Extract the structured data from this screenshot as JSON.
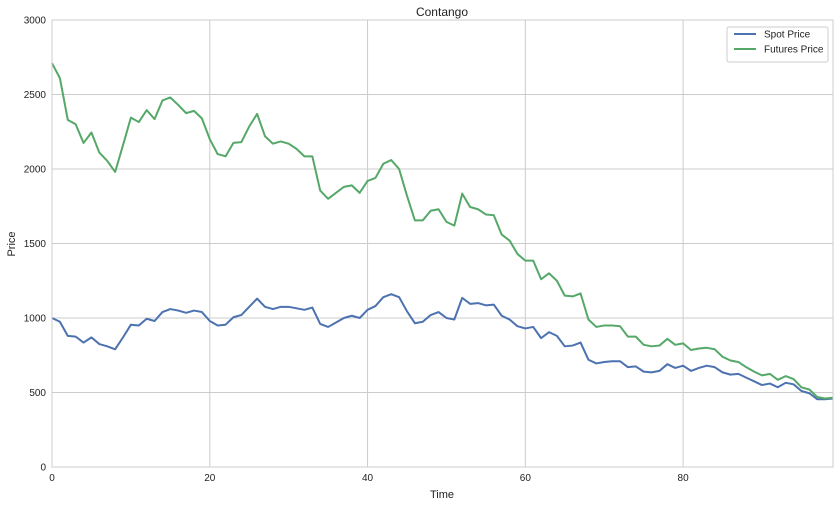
{
  "chart_data": {
    "type": "line",
    "title": "Contango",
    "xlabel": "Time",
    "ylabel": "Price",
    "xlim": [
      0,
      99
    ],
    "ylim": [
      0,
      3000
    ],
    "xticks": [
      0,
      20,
      40,
      60,
      80
    ],
    "yticks": [
      0,
      500,
      1000,
      1500,
      2000,
      2500,
      3000
    ],
    "grid": true,
    "legend_position": "top-right",
    "x": [
      0,
      1,
      2,
      3,
      4,
      5,
      6,
      7,
      8,
      9,
      10,
      11,
      12,
      13,
      14,
      15,
      16,
      17,
      18,
      19,
      20,
      21,
      22,
      23,
      24,
      25,
      26,
      27,
      28,
      29,
      30,
      31,
      32,
      33,
      34,
      35,
      36,
      37,
      38,
      39,
      40,
      41,
      42,
      43,
      44,
      45,
      46,
      47,
      48,
      49,
      50,
      51,
      52,
      53,
      54,
      55,
      56,
      57,
      58,
      59,
      60,
      61,
      62,
      63,
      64,
      65,
      66,
      67,
      68,
      69,
      70,
      71,
      72,
      73,
      74,
      75,
      76,
      77,
      78,
      79,
      80,
      81,
      82,
      83,
      84,
      85,
      86,
      87,
      88,
      89,
      90,
      91,
      92,
      93,
      94,
      95,
      96,
      97,
      98,
      99
    ],
    "series": [
      {
        "name": "Spot Price",
        "color": "#4c72b0",
        "values": [
          1000,
          975,
          880,
          875,
          835,
          870,
          825,
          810,
          790,
          870,
          955,
          950,
          995,
          980,
          1040,
          1060,
          1050,
          1035,
          1050,
          1040,
          980,
          950,
          955,
          1005,
          1020,
          1075,
          1130,
          1075,
          1060,
          1075,
          1075,
          1065,
          1055,
          1070,
          960,
          940,
          970,
          1000,
          1015,
          1000,
          1055,
          1080,
          1140,
          1160,
          1140,
          1045,
          965,
          975,
          1020,
          1040,
          1000,
          990,
          1135,
          1095,
          1100,
          1085,
          1090,
          1015,
          990,
          945,
          930,
          940,
          865,
          905,
          880,
          810,
          815,
          835,
          720,
          695,
          705,
          710,
          710,
          670,
          675,
          640,
          635,
          645,
          690,
          665,
          680,
          645,
          665,
          680,
          670,
          635,
          620,
          625,
          600,
          575,
          550,
          560,
          535,
          565,
          555,
          510,
          495,
          455,
          455,
          460
        ]
      },
      {
        "name": "Futures Price",
        "color": "#55a868",
        "values": [
          2710,
          2610,
          2330,
          2300,
          2175,
          2245,
          2110,
          2055,
          1980,
          2160,
          2345,
          2315,
          2395,
          2335,
          2460,
          2480,
          2430,
          2375,
          2390,
          2340,
          2200,
          2100,
          2085,
          2175,
          2180,
          2285,
          2370,
          2220,
          2170,
          2185,
          2170,
          2135,
          2085,
          2085,
          1855,
          1800,
          1840,
          1880,
          1890,
          1840,
          1920,
          1940,
          2035,
          2060,
          2000,
          1820,
          1655,
          1655,
          1720,
          1730,
          1645,
          1620,
          1835,
          1745,
          1730,
          1695,
          1690,
          1560,
          1520,
          1430,
          1385,
          1385,
          1260,
          1300,
          1250,
          1150,
          1145,
          1165,
          990,
          940,
          950,
          950,
          945,
          875,
          875,
          820,
          810,
          815,
          860,
          820,
          830,
          785,
          795,
          800,
          790,
          740,
          715,
          705,
          670,
          640,
          615,
          625,
          585,
          610,
          590,
          535,
          520,
          470,
          460,
          465
        ]
      }
    ]
  }
}
